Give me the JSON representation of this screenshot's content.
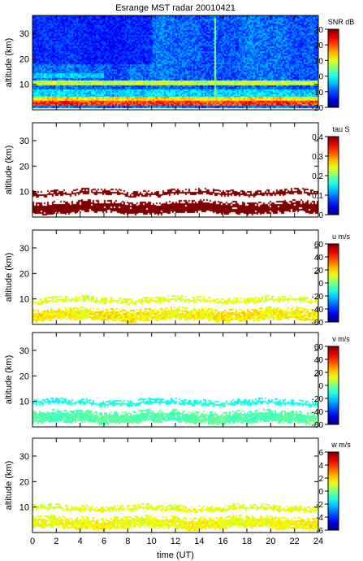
{
  "chart_data": [
    {
      "type": "heatmap",
      "title": "Esrange MST radar 20010421",
      "ylabel": "altitude (km)",
      "xlabel": "",
      "xlim": [
        0,
        24
      ],
      "ylim": [
        0,
        37
      ],
      "yticks": [
        10,
        20,
        30
      ],
      "colorbar": {
        "label": "SNR dB",
        "range": [
          -20,
          30
        ],
        "ticks": [
          -20,
          -10,
          0,
          10,
          20,
          30
        ]
      },
      "layers": [
        {
          "name": "",
          "y_bottom": 0.5,
          "y_top": 37,
          "value": -9,
          "noise": 4,
          "x_start": 0,
          "x_end": 24
        },
        {
          "name": "",
          "y_bottom": 18,
          "y_top": 37,
          "value": -12,
          "noise": 3,
          "x_start": 0,
          "x_end": 10
        },
        {
          "name": "",
          "y_bottom": 12.5,
          "y_top": 14.5,
          "value": -4,
          "noise": 3,
          "x_start": 0,
          "x_end": 6
        },
        {
          "name": "",
          "y_bottom": 9.5,
          "y_top": 11.5,
          "value": 8,
          "noise": 4,
          "x_start": 0,
          "x_end": 24
        },
        {
          "name": "",
          "y_bottom": 5,
          "y_top": 8,
          "value": -3,
          "noise": 4,
          "x_start": 0,
          "x_end": 24
        },
        {
          "name": "",
          "y_bottom": 3.5,
          "y_top": 5,
          "value": 12,
          "noise": 5,
          "x_start": 0,
          "x_end": 24
        },
        {
          "name": "",
          "y_bottom": 1.5,
          "y_top": 3.5,
          "value": 21,
          "noise": 5,
          "x_start": 0,
          "x_end": 24
        }
      ],
      "features": [
        {
          "x": 15.3,
          "y_bottom": 5,
          "y_top": 36,
          "value": 5
        }
      ]
    },
    {
      "type": "heatmap",
      "ylabel": "altitude (km)",
      "xlabel": "",
      "xlim": [
        0,
        24
      ],
      "ylim": [
        0,
        37
      ],
      "yticks": [
        10,
        20,
        30
      ],
      "colorbar": {
        "label": "tau S",
        "range": [
          0,
          0.4
        ],
        "ticks": [
          0,
          0.1,
          0.2,
          0.3,
          0.4
        ]
      },
      "layers": [
        {
          "name": "",
          "y_bottom": 8.5,
          "y_top": 11,
          "value": 0.4,
          "noise": 0,
          "x_start": 0,
          "x_end": 24
        },
        {
          "name": "",
          "y_bottom": 1.5,
          "y_top": 6.5,
          "value": 0.4,
          "noise": 0,
          "x_start": 0,
          "x_end": 24
        }
      ]
    },
    {
      "type": "heatmap",
      "ylabel": "altitude (km)",
      "xlabel": "",
      "xlim": [
        0,
        24
      ],
      "ylim": [
        0,
        37
      ],
      "yticks": [
        10,
        20,
        30
      ],
      "colorbar": {
        "label": "u m/s",
        "range": [
          -60,
          60
        ],
        "ticks": [
          -60,
          -40,
          -20,
          0,
          20,
          40,
          60
        ]
      },
      "layers": [
        {
          "name": "",
          "y_bottom": 8.5,
          "y_top": 11,
          "value": 12,
          "noise": 5,
          "x_start": 0,
          "x_end": 24
        },
        {
          "name": "",
          "y_bottom": 1.5,
          "y_top": 6.5,
          "value": 16,
          "noise": 7,
          "x_start": 0,
          "x_end": 24
        }
      ]
    },
    {
      "type": "heatmap",
      "ylabel": "altitude (km)",
      "xlabel": "",
      "xlim": [
        0,
        24
      ],
      "ylim": [
        0,
        37
      ],
      "yticks": [
        10,
        20,
        30
      ],
      "colorbar": {
        "label": "v m/s",
        "range": [
          -60,
          60
        ],
        "ticks": [
          -60,
          -40,
          -20,
          0,
          20,
          40,
          60
        ]
      },
      "layers": [
        {
          "name": "",
          "y_bottom": 8.5,
          "y_top": 11,
          "value": -12,
          "noise": 5,
          "x_start": 0,
          "x_end": 24
        },
        {
          "name": "",
          "y_bottom": 1.5,
          "y_top": 6.5,
          "value": -5,
          "noise": 5,
          "x_start": 0,
          "x_end": 24
        }
      ]
    },
    {
      "type": "heatmap",
      "ylabel": "altitude (km)",
      "xlabel": "time (UT)",
      "xlim": [
        0,
        24
      ],
      "ylim": [
        0,
        37
      ],
      "yticks": [
        10,
        20,
        30
      ],
      "xticks": [
        0,
        2,
        4,
        6,
        8,
        10,
        12,
        14,
        16,
        18,
        20,
        22,
        24
      ],
      "colorbar": {
        "label": "w m/s",
        "range": [
          -6,
          6
        ],
        "ticks": [
          -6,
          -4,
          -2,
          0,
          2,
          4,
          6
        ]
      },
      "layers": [
        {
          "name": "",
          "y_bottom": 8.5,
          "y_top": 11,
          "value": 1.2,
          "noise": 0.6,
          "x_start": 0,
          "x_end": 24
        },
        {
          "name": "",
          "y_bottom": 1.5,
          "y_top": 6.5,
          "value": 1.4,
          "noise": 0.6,
          "x_start": 0,
          "x_end": 24
        }
      ]
    }
  ]
}
